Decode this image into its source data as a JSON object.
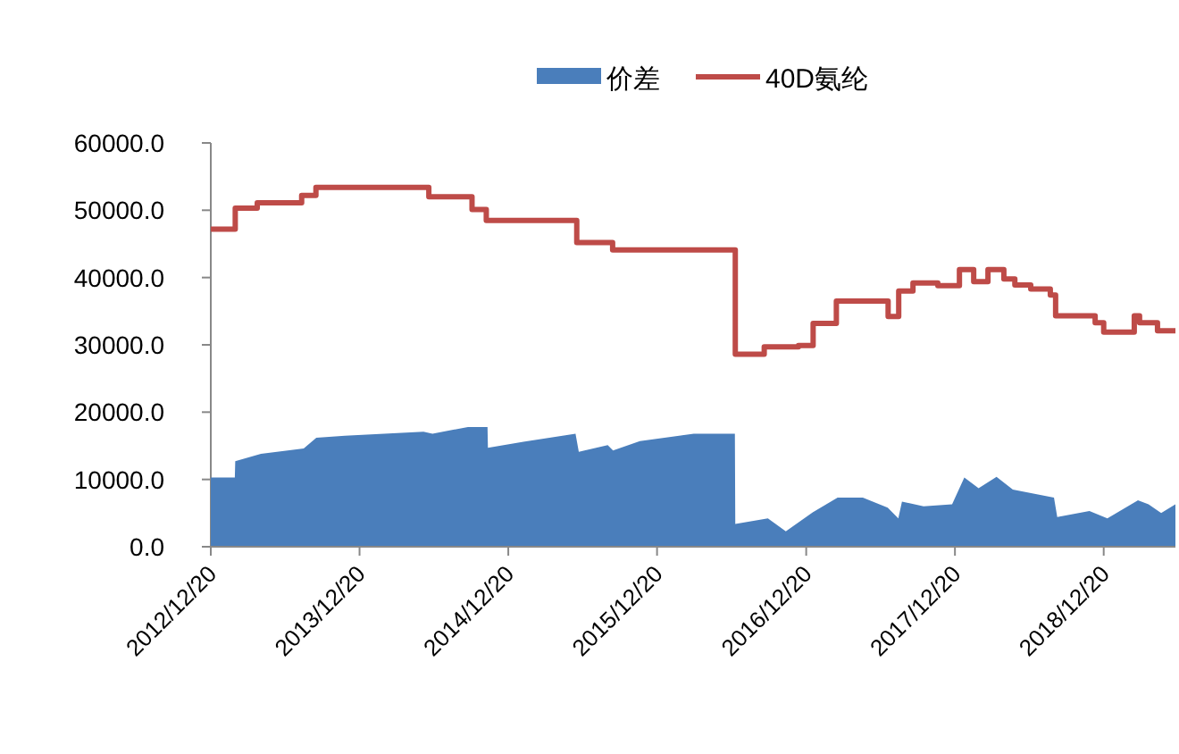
{
  "chart_data": {
    "type": "area",
    "legend": "top",
    "xlim": [
      "2012-12-20",
      "2019-06-14"
    ],
    "xticks": [
      {
        "value": "2012-12-20",
        "label": "2012/12/20"
      },
      {
        "value": "2013-12-20",
        "label": "2013/12/20"
      },
      {
        "value": "2014-12-20",
        "label": "2014/12/20"
      },
      {
        "value": "2015-12-20",
        "label": "2015/12/20"
      },
      {
        "value": "2016-12-20",
        "label": "2016/12/20"
      },
      {
        "value": "2017-12-20",
        "label": "2017/12/20"
      },
      {
        "value": "2018-12-20",
        "label": "2018/12/20"
      }
    ],
    "ylim": [
      0,
      60000
    ],
    "yticks": [
      {
        "value": 0,
        "label": "0.0"
      },
      {
        "value": 10000,
        "label": "10000.0"
      },
      {
        "value": 20000,
        "label": "20000.0"
      },
      {
        "value": 30000,
        "label": "30000.0"
      },
      {
        "value": 40000,
        "label": "40000.0"
      },
      {
        "value": 50000,
        "label": "50000.0"
      },
      {
        "value": 60000,
        "label": "60000.0"
      }
    ],
    "series": [
      {
        "name": "价差",
        "color": "#4a7ebb",
        "x": [
          "2012-12-20",
          "2013-02-17",
          "2013-02-18",
          "2013-04-22",
          "2013-08-05",
          "2013-09-05",
          "2013-11-14",
          "2014-05-26",
          "2014-06-17",
          "2014-09-12",
          "2014-10-30",
          "2014-10-31",
          "2015-01-26",
          "2015-06-03",
          "2015-06-11",
          "2015-08-21",
          "2015-09-03",
          "2015-11-08",
          "2016-03-19",
          "2016-06-28",
          "2016-06-29",
          "2016-09-17",
          "2016-10-31",
          "2017-01-05",
          "2017-03-07",
          "2017-05-08",
          "2017-07-08",
          "2017-08-03",
          "2017-08-12",
          "2017-10-04",
          "2017-12-13",
          "2018-01-12",
          "2018-02-16",
          "2018-04-01",
          "2018-05-11",
          "2018-08-20",
          "2018-08-28",
          "2018-11-15",
          "2018-12-29",
          "2019-03-14",
          "2019-04-09",
          "2019-05-10",
          "2019-06-14"
        ],
        "values": [
          10300,
          10300,
          12700,
          13800,
          14600,
          16200,
          16500,
          17100,
          16800,
          17800,
          17800,
          14700,
          15600,
          16800,
          14100,
          15100,
          14300,
          15700,
          16800,
          16800,
          3400,
          4200,
          2300,
          5100,
          7300,
          7300,
          5800,
          4200,
          6700,
          6000,
          6300,
          10300,
          8700,
          10400,
          8500,
          7300,
          4400,
          5300,
          4200,
          6900,
          6300,
          5000,
          6300
        ]
      },
      {
        "name": "40D氨纶",
        "type": "step",
        "color": "#be4b48",
        "x": [
          "2012-12-20",
          "2013-02-18",
          "2013-04-13",
          "2013-07-31",
          "2013-09-04",
          "2014-06-08",
          "2014-09-22",
          "2014-10-27",
          "2015-06-06",
          "2015-09-02",
          "2016-06-29",
          "2016-09-08",
          "2016-12-01",
          "2017-01-06",
          "2017-03-04",
          "2017-07-09",
          "2017-08-04",
          "2017-09-08",
          "2017-11-08",
          "2017-12-31",
          "2018-02-04",
          "2018-03-11",
          "2018-04-19",
          "2018-05-16",
          "2018-06-24",
          "2018-08-11",
          "2018-08-24",
          "2018-11-29",
          "2018-12-20",
          "2019-03-05",
          "2019-03-18",
          "2019-05-01",
          "2019-06-14"
        ],
        "values": [
          47200,
          50300,
          51100,
          52200,
          53400,
          52000,
          50100,
          48500,
          45200,
          44100,
          28600,
          29700,
          29900,
          33200,
          36500,
          34200,
          38000,
          39200,
          38800,
          41200,
          39400,
          41200,
          39800,
          38900,
          38300,
          37400,
          34300,
          33300,
          31900,
          34300,
          33300,
          32100,
          32100
        ]
      }
    ]
  }
}
